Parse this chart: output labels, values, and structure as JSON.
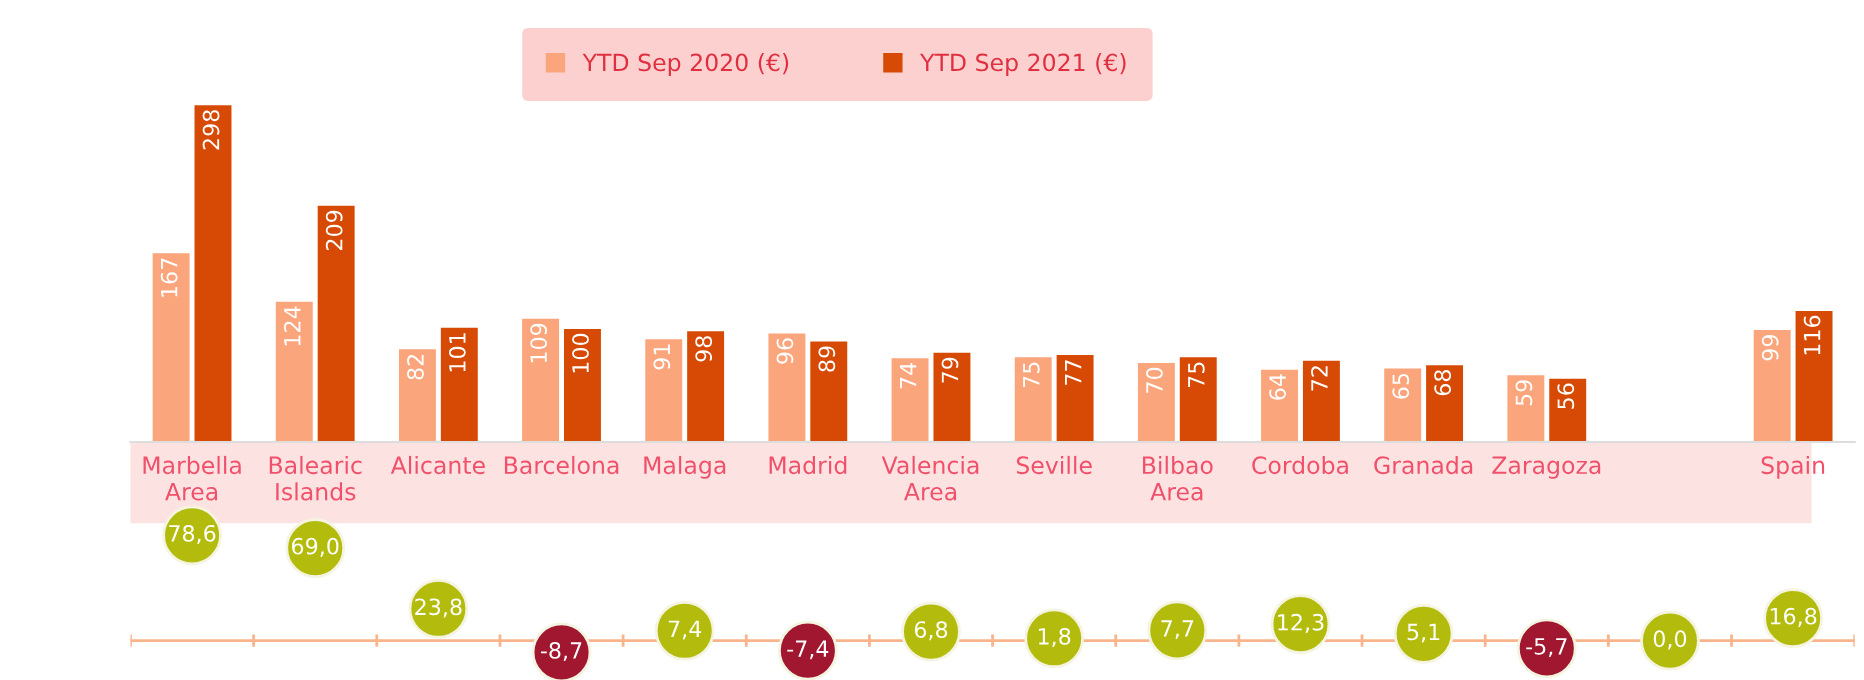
{
  "chart_data": [
    {
      "type": "bar",
      "categories": [
        "Marbella\nArea",
        "Balearic\nIslands",
        "Alicante",
        "Barcelona",
        "Malaga",
        "Madrid",
        "Valencia\nArea",
        "Seville",
        "Bilbao\nArea",
        "Cordoba",
        "Granada",
        "Zaragoza",
        null,
        "Spain"
      ],
      "series": [
        {
          "name": "YTD Sep 2020 (€)",
          "color": "#fba57c",
          "values": [
            167,
            124,
            82,
            109,
            91,
            96,
            74,
            75,
            70,
            64,
            65,
            59,
            null,
            99
          ]
        },
        {
          "name": "YTD Sep 2021 (€)",
          "color": "#d64a06",
          "values": [
            298,
            209,
            101,
            100,
            98,
            89,
            79,
            77,
            75,
            72,
            68,
            56,
            null,
            116
          ]
        }
      ],
      "data_labels": true,
      "legend": "top",
      "tick_labels": "x",
      "grid": false
    },
    {
      "type": "scatter",
      "categories": [
        null,
        null,
        null,
        null,
        null,
        null,
        null,
        null,
        null,
        null,
        null,
        null,
        null,
        null
      ],
      "ref_lines": [
        {
          "axis": "y",
          "value": 0,
          "color": "#f9b48c"
        }
      ],
      "values": [
        78.6,
        69.0,
        23.8,
        -8.7,
        7.4,
        -7.4,
        6.8,
        1.8,
        7.7,
        12.3,
        5.1,
        -5.7,
        0.0,
        16.8
      ],
      "value_labels": [
        "78,6",
        "69,0",
        "23,8",
        "-8,7",
        "7,4",
        "-7,4",
        "6,8",
        "1,8",
        "7,7",
        "12,3",
        "5,1",
        "-5,7",
        "0,0",
        "16,8"
      ],
      "colors": [
        "#b3bc0d",
        "#b3bc0d",
        "#b3bc0d",
        "#a0172f",
        "#b3bc0d",
        "#a0172f",
        "#b3bc0d",
        "#b3bc0d",
        "#b3bc0d",
        "#b3bc0d",
        "#b3bc0d",
        "#a0172f",
        "#b3bc0d",
        "#b3bc0d"
      ],
      "tick_labels": false,
      "grid": false
    }
  ]
}
